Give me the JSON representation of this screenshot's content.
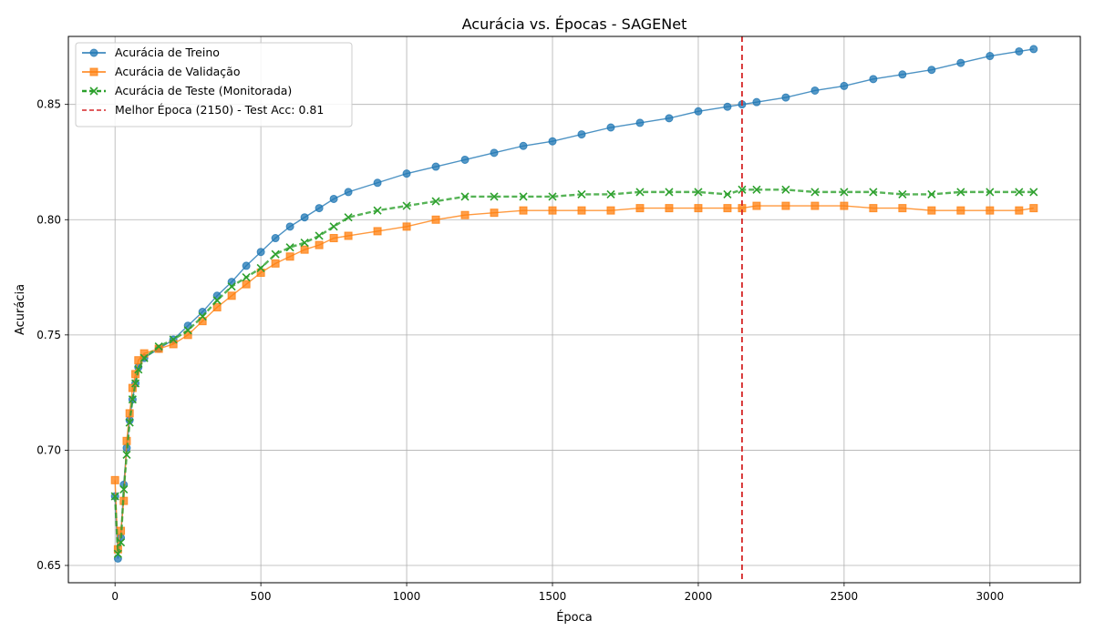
{
  "chart_data": {
    "type": "line",
    "title": "Acurácia vs. Épocas - SAGENet",
    "xlabel": "Época",
    "ylabel": "Acurácia",
    "xlim": [
      -160,
      3310
    ],
    "ylim": [
      0.6425,
      0.8795
    ],
    "xticks": [
      0,
      500,
      1000,
      1500,
      2000,
      2500,
      3000
    ],
    "xtick_labels": [
      "0",
      "500",
      "1000",
      "1500",
      "2000",
      "2500",
      "3000"
    ],
    "yticks": [
      0.65,
      0.7,
      0.75,
      0.8,
      0.85
    ],
    "ytick_labels": [
      "0.65",
      "0.70",
      "0.75",
      "0.80",
      "0.85"
    ],
    "grid": true,
    "legend_position": "top-left",
    "series": [
      {
        "name": "Acurácia de Treino",
        "color": "#1f77b4",
        "marker": "circle",
        "x": [
          0,
          10,
          20,
          30,
          40,
          50,
          60,
          70,
          80,
          100,
          150,
          200,
          250,
          300,
          350,
          400,
          450,
          500,
          550,
          600,
          650,
          700,
          750,
          800,
          900,
          1000,
          1100,
          1200,
          1300,
          1400,
          1500,
          1600,
          1700,
          1800,
          1900,
          2000,
          2100,
          2150,
          2200,
          2300,
          2400,
          2500,
          2600,
          2700,
          2800,
          2900,
          3000,
          3100,
          3150
        ],
        "y": [
          0.68,
          0.653,
          0.662,
          0.685,
          0.701,
          0.713,
          0.722,
          0.729,
          0.736,
          0.74,
          0.744,
          0.748,
          0.754,
          0.76,
          0.767,
          0.773,
          0.78,
          0.786,
          0.792,
          0.797,
          0.801,
          0.805,
          0.809,
          0.812,
          0.816,
          0.82,
          0.823,
          0.826,
          0.829,
          0.832,
          0.834,
          0.837,
          0.84,
          0.842,
          0.844,
          0.847,
          0.849,
          0.85,
          0.851,
          0.853,
          0.856,
          0.858,
          0.861,
          0.863,
          0.865,
          0.868,
          0.871,
          0.873,
          0.874
        ]
      },
      {
        "name": "Acurácia de Validação",
        "color": "#ff7f0e",
        "marker": "square",
        "x": [
          0,
          10,
          20,
          30,
          40,
          50,
          60,
          70,
          80,
          100,
          150,
          200,
          250,
          300,
          350,
          400,
          450,
          500,
          550,
          600,
          650,
          700,
          750,
          800,
          900,
          1000,
          1100,
          1200,
          1300,
          1400,
          1500,
          1600,
          1700,
          1800,
          1900,
          2000,
          2100,
          2150,
          2200,
          2300,
          2400,
          2500,
          2600,
          2700,
          2800,
          2900,
          3000,
          3100,
          3150
        ],
        "y": [
          0.687,
          0.657,
          0.665,
          0.678,
          0.704,
          0.716,
          0.727,
          0.733,
          0.739,
          0.742,
          0.744,
          0.746,
          0.75,
          0.756,
          0.762,
          0.767,
          0.772,
          0.777,
          0.781,
          0.784,
          0.787,
          0.789,
          0.792,
          0.793,
          0.795,
          0.797,
          0.8,
          0.802,
          0.803,
          0.804,
          0.804,
          0.804,
          0.804,
          0.805,
          0.805,
          0.805,
          0.805,
          0.805,
          0.806,
          0.806,
          0.806,
          0.806,
          0.805,
          0.805,
          0.804,
          0.804,
          0.804,
          0.804,
          0.805
        ]
      },
      {
        "name": "Acurácia de Teste (Monitorada)",
        "color": "#2ca02c",
        "marker": "x",
        "x": [
          0,
          10,
          20,
          30,
          40,
          50,
          60,
          70,
          80,
          100,
          150,
          200,
          250,
          300,
          350,
          400,
          450,
          500,
          550,
          600,
          650,
          700,
          750,
          800,
          900,
          1000,
          1100,
          1200,
          1300,
          1400,
          1500,
          1600,
          1700,
          1800,
          1900,
          2000,
          2100,
          2150,
          2200,
          2300,
          2400,
          2500,
          2600,
          2700,
          2800,
          2900,
          3000,
          3100,
          3150
        ],
        "y": [
          0.68,
          0.655,
          0.66,
          0.683,
          0.698,
          0.712,
          0.722,
          0.729,
          0.735,
          0.74,
          0.745,
          0.748,
          0.752,
          0.758,
          0.765,
          0.771,
          0.775,
          0.779,
          0.785,
          0.788,
          0.79,
          0.793,
          0.797,
          0.801,
          0.804,
          0.806,
          0.808,
          0.81,
          0.81,
          0.81,
          0.81,
          0.811,
          0.811,
          0.812,
          0.812,
          0.812,
          0.811,
          0.813,
          0.813,
          0.813,
          0.812,
          0.812,
          0.812,
          0.811,
          0.811,
          0.812,
          0.812,
          0.812,
          0.812
        ]
      }
    ],
    "vline": {
      "label": "Melhor Época (2150) - Test Acc: 0.81",
      "x": 2150,
      "color": "#d62728",
      "style": "dashed"
    }
  }
}
